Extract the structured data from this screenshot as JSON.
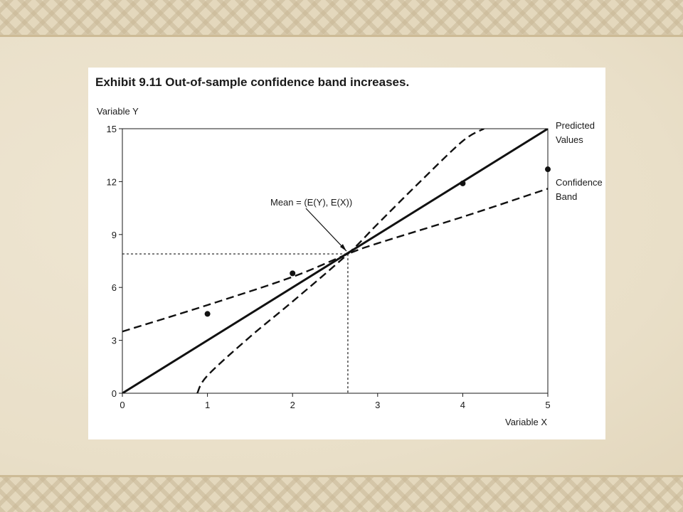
{
  "slide": {
    "background_color": "#ece3cf",
    "border_pattern": "decorative-knot-band"
  },
  "chart_data": {
    "type": "line",
    "title": "Exhibit 9.11 Out-of-sample confidence band increases.",
    "xlabel": "Variable X",
    "ylabel": "Variable Y",
    "xlim": [
      0,
      5
    ],
    "ylim": [
      0,
      15
    ],
    "x_ticks": [
      "0",
      "1",
      "2",
      "3",
      "4",
      "5"
    ],
    "y_ticks": [
      "0",
      "3",
      "6",
      "9",
      "12",
      "15"
    ],
    "grid": false,
    "series": [
      {
        "name": "Predicted Values",
        "style": "solid",
        "points": [
          [
            0,
            0
          ],
          [
            5,
            15
          ]
        ]
      },
      {
        "name": "Confidence Band",
        "style": "dashed",
        "points": [
          [
            0,
            3.5
          ],
          [
            1,
            5.0
          ],
          [
            2,
            6.6
          ],
          [
            2.65,
            7.9
          ],
          [
            3,
            8.5
          ],
          [
            4,
            10.0
          ],
          [
            5,
            11.6
          ]
        ]
      },
      {
        "name": "",
        "style": "dashed",
        "points": [
          [
            0.88,
            0
          ],
          [
            1.0,
            1.0
          ],
          [
            1.5,
            3.2
          ],
          [
            2.0,
            5.2
          ],
          [
            2.65,
            7.9
          ],
          [
            3.0,
            9.6
          ],
          [
            3.5,
            12.0
          ],
          [
            4.0,
            14.3
          ],
          [
            4.25,
            15.0
          ]
        ]
      }
    ],
    "scatter": [
      {
        "x": 1.0,
        "y": 4.5
      },
      {
        "x": 2.0,
        "y": 6.8
      },
      {
        "x": 4.0,
        "y": 11.9
      },
      {
        "x": 5.0,
        "y": 12.7
      }
    ],
    "mean_point": {
      "x": 2.65,
      "y": 7.9
    },
    "annotations": {
      "predicted_label_line1": "Predicted",
      "predicted_label_line2": "Values",
      "band_label_line1": "Confidence",
      "band_label_line2": "Band",
      "mean_label": "Mean = (E(Y), E(X))"
    },
    "legend": "right-side labels"
  }
}
